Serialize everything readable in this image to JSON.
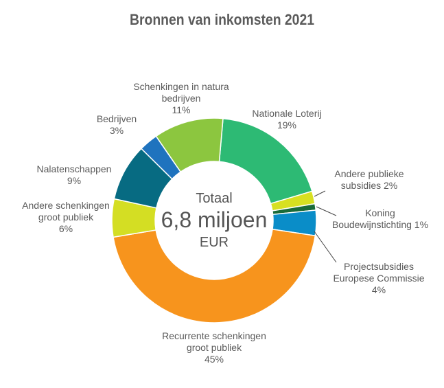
{
  "chart_data": {
    "type": "pie",
    "title": "Bronnen van inkomsten 2021",
    "center": {
      "line1": "Totaal",
      "line2": "6,8 miljoen",
      "line3": "EUR"
    },
    "slices": [
      {
        "name": "Nationale Loterij",
        "value": 19,
        "label_lines": [
          "Nationale Loterij",
          "19%"
        ],
        "color": "#2dba74"
      },
      {
        "name": "Andere publieke subsidies",
        "value": 2,
        "label_lines": [
          "Andere publieke",
          "subsidies 2%"
        ],
        "color": "#d7e021"
      },
      {
        "name": "Koning Boudewijnstichting",
        "value": 1,
        "label_lines": [
          "Koning",
          "Boudewijnstichting 1%"
        ],
        "color": "#1a6b39"
      },
      {
        "name": "Projectsubsidies Europese Commissie",
        "value": 4,
        "label_lines": [
          "Projectsubsidies",
          "Europese Commissie",
          "4%"
        ],
        "color": "#0a8dc8"
      },
      {
        "name": "Recurrente schenkingen groot publiek",
        "value": 45,
        "label_lines": [
          "Recurrente schenkingen",
          "groot publiek",
          "45%"
        ],
        "color": "#f7941d"
      },
      {
        "name": "Andere schenkingen groot publiek",
        "value": 6,
        "label_lines": [
          "Andere schenkingen",
          "groot publiek",
          "6%"
        ],
        "color": "#d4de23"
      },
      {
        "name": "Nalatenschappen",
        "value": 9,
        "label_lines": [
          "Nalatenschappen",
          "9%"
        ],
        "color": "#076b82"
      },
      {
        "name": "Bedrijven",
        "value": 3,
        "label_lines": [
          "Bedrijven",
          "3%"
        ],
        "color": "#1f73be"
      },
      {
        "name": "Schenkingen in natura bedrijven",
        "value": 11,
        "label_lines": [
          "Schenkingen in natura",
          "bedrijven",
          "11%"
        ],
        "color": "#8cc63f"
      }
    ]
  }
}
